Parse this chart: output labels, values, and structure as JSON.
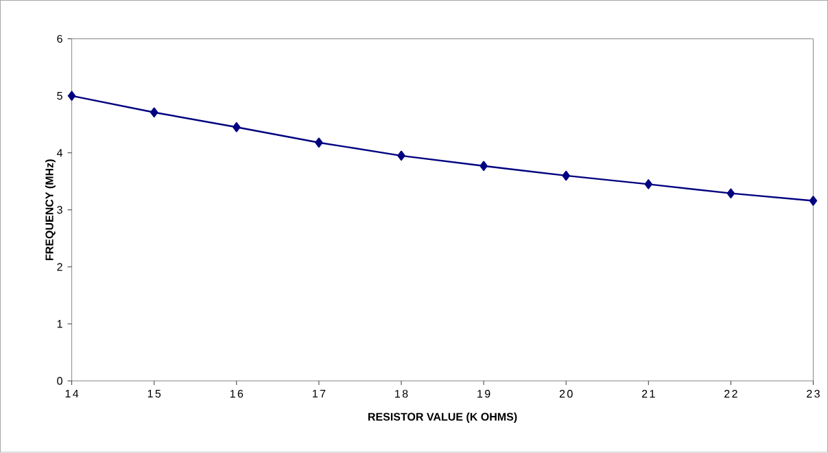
{
  "chart_data": {
    "type": "line",
    "xlabel": "RESISTOR  VALUE  (K  OHMS)",
    "ylabel": "FREQUENCY  (MHz)",
    "x": [
      14,
      15,
      16,
      17,
      18,
      19,
      20,
      21,
      22,
      23
    ],
    "series": [
      {
        "color": "#000080",
        "values": [
          5.0,
          4.71,
          4.45,
          4.18,
          3.95,
          3.77,
          3.6,
          3.45,
          3.29,
          3.16
        ]
      }
    ],
    "xlim": [
      14,
      23
    ],
    "ylim": [
      0,
      6
    ],
    "xticks": [
      14,
      15,
      16,
      17,
      18,
      19,
      20,
      21,
      22,
      23
    ],
    "yticks": [
      0,
      1,
      2,
      3,
      4,
      5,
      6
    ],
    "grid": false,
    "marker": "diamond",
    "line_style": "solid"
  }
}
